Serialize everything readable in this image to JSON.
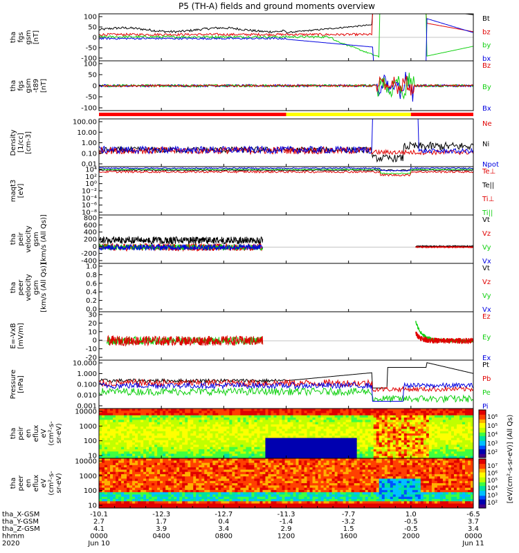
{
  "title": "P5 (TH-A) fields and ground moments overview",
  "colors": {
    "black": "#000000",
    "red": "#e00000",
    "green": "#10d010",
    "blue": "#0000e0",
    "yellow": "#ffff00",
    "bar_red": "#ff0000"
  },
  "chart_data": [
    {
      "type": "line",
      "ylabel": [
        "tha",
        "fgs",
        "gsm",
        "[nT]"
      ],
      "yticks": [
        "100",
        "50",
        "0",
        "-50",
        "-100"
      ],
      "ylim": [
        -100,
        100
      ],
      "legend": [
        {
          "label": "Bt",
          "color": "#000000"
        },
        {
          "label": "bz",
          "color": "#e00000"
        },
        {
          "label": "by",
          "color": "#10d010"
        },
        {
          "label": "bx",
          "color": "#0000e0"
        }
      ]
    },
    {
      "type": "line",
      "ylabel": [
        "tha",
        "fgs",
        "gsm",
        "-t89",
        "[nT]"
      ],
      "yticks": [
        "100",
        "50",
        "0",
        "-50",
        "-100"
      ],
      "ylim": [
        -120,
        120
      ],
      "legend": [
        {
          "label": "Bz",
          "color": "#e00000"
        },
        {
          "label": "By",
          "color": "#10d010"
        },
        {
          "label": "Bx",
          "color": "#0000e0"
        }
      ]
    },
    {
      "type": "line",
      "ylabel": [
        "Density",
        "[1/cc]",
        "[cm-3]"
      ],
      "yticks": [
        "100.00",
        "10.00",
        "1.00",
        "0.10",
        "0.01"
      ],
      "yscale": "log",
      "legend": [
        {
          "label": "Ne",
          "color": "#e00000"
        },
        {
          "label": "Ni",
          "color": "#000000"
        },
        {
          "label": "Npot",
          "color": "#0000e0"
        }
      ]
    },
    {
      "type": "line",
      "ylabel": [
        "maqt3",
        "[eV]"
      ],
      "yticks": [
        "10⁴",
        "10²",
        "10⁰",
        "10⁻²",
        "10⁻⁴",
        "10⁻⁶",
        "10⁻⁸"
      ],
      "yscale": "log",
      "legend": [
        {
          "label": "Te⊥",
          "color": "#e00000"
        },
        {
          "label": "Te||",
          "color": "#000000"
        },
        {
          "label": "Ti⊥",
          "color": "#e00000"
        },
        {
          "label": "Ti||",
          "color": "#10d010"
        }
      ]
    },
    {
      "type": "line",
      "ylabel": [
        "tha",
        "peir",
        "velocity",
        "gsm",
        "[km/s (All Qs)]"
      ],
      "yticks": [
        "800",
        "600",
        "400",
        "200",
        "0",
        "-200",
        "-400"
      ],
      "ylim": [
        -400,
        800
      ],
      "legend": [
        {
          "label": "Vt",
          "color": "#000000"
        },
        {
          "label": "Vz",
          "color": "#e00000"
        },
        {
          "label": "Vy",
          "color": "#10d010"
        },
        {
          "label": "Vx",
          "color": "#0000e0"
        }
      ]
    },
    {
      "type": "line",
      "ylabel": [
        "tha",
        "peer",
        "velocity",
        "gsm",
        "[km/s (All Qs)]"
      ],
      "yticks": [
        "1.0",
        "0.8",
        "0.6",
        "0.4",
        "0.2",
        "0.0"
      ],
      "ylim": [
        0,
        1
      ],
      "legend": [
        {
          "label": "Vt",
          "color": "#000000"
        },
        {
          "label": "Vz",
          "color": "#e00000"
        },
        {
          "label": "Vy",
          "color": "#10d010"
        },
        {
          "label": "Vx",
          "color": "#0000e0"
        }
      ]
    },
    {
      "type": "line",
      "ylabel": [
        "E=-VxB",
        "[mV/m]"
      ],
      "yticks": [
        "30",
        "20",
        "10",
        "0",
        "-10",
        "-20"
      ],
      "ylim": [
        -20,
        30
      ],
      "legend": [
        {
          "label": "Ez",
          "color": "#e00000"
        },
        {
          "label": "Ey",
          "color": "#10d010"
        },
        {
          "label": "Ex",
          "color": "#0000e0"
        }
      ]
    },
    {
      "type": "line",
      "ylabel": [
        "Pressure",
        "[nPa]"
      ],
      "yticks": [
        "10.000",
        "1.000",
        "0.100",
        "0.010",
        "0.001"
      ],
      "yscale": "log",
      "legend": [
        {
          "label": "Pt",
          "color": "#000000"
        },
        {
          "label": "Pb",
          "color": "#e00000"
        },
        {
          "label": "Pe",
          "color": "#10d010"
        },
        {
          "label": "Pi",
          "color": "#0000e0"
        }
      ]
    },
    {
      "type": "heatmap",
      "ylabel": [
        "tha",
        "peir",
        "en",
        "eflux",
        "eV",
        "(cm²-s-",
        "sr-eV)"
      ],
      "yticks": [
        "10000",
        "1000",
        "100",
        "10"
      ],
      "yscale": "log"
    },
    {
      "type": "heatmap",
      "ylabel": [
        "tha",
        "peer",
        "en",
        "eflux",
        "eV",
        "(cm²-s-",
        "sr-eV)"
      ],
      "yticks": [
        "10000",
        "1000",
        "100",
        "10"
      ],
      "yscale": "log"
    }
  ],
  "region_bar": [
    {
      "from": "0000",
      "to": "1200",
      "color": "#ff0000"
    },
    {
      "from": "1200",
      "to": "2000",
      "color": "#ffff00"
    },
    {
      "from": "2000",
      "to": "0000",
      "color": "#ff0000"
    }
  ],
  "colorbar": {
    "label": "[eV/(cm²-s-sr-eV)] (All Qs)",
    "ticks_top": [
      "10⁶",
      "10⁵",
      "10⁴",
      "10³",
      "10²"
    ],
    "ticks_bottom": [
      "10⁷",
      "10⁶",
      "10⁵",
      "10⁴",
      "10³",
      "10²"
    ]
  },
  "xaxis": {
    "row_labels": [
      "tha_X-GSM",
      "tha_Y-GSM",
      "tha_Z-GSM",
      "hhmm",
      "2020"
    ],
    "columns": [
      [
        "-10.1",
        "2.7",
        "4.1",
        "0000",
        "Jun 10"
      ],
      [
        "-12.3",
        "1.7",
        "3.9",
        "0400",
        ""
      ],
      [
        "-12.7",
        "0.4",
        "3.4",
        "0800",
        ""
      ],
      [
        "-11.3",
        "-1.4",
        "2.9",
        "1200",
        ""
      ],
      [
        "-7.7",
        "-3.2",
        "1.5",
        "1600",
        ""
      ],
      [
        "1.0",
        "-0.5",
        "-0.5",
        "2000",
        ""
      ],
      [
        "-6.5",
        "3.7",
        "3.4",
        "0000",
        "Jun 11"
      ]
    ]
  }
}
